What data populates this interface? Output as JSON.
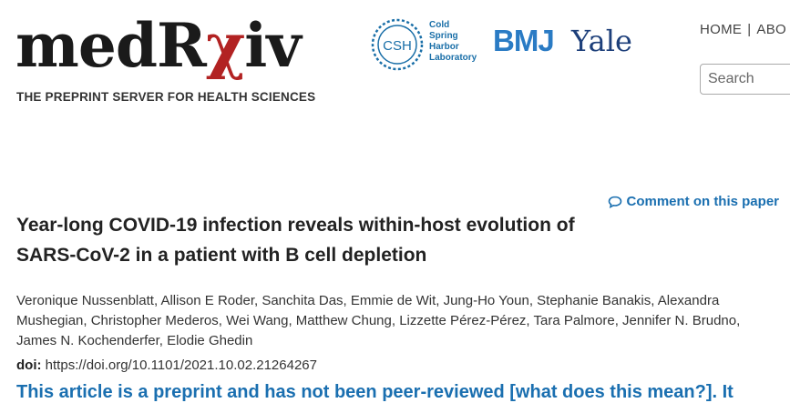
{
  "header": {
    "logo": {
      "prefix": "medR",
      "chi": "χ",
      "suffix": "iv"
    },
    "tagline": "THE PREPRINT SERVER FOR HEALTH SCIENCES",
    "partners": {
      "csh": {
        "emblem": "CSH",
        "lines": [
          "Cold",
          "Spring",
          "Harbor",
          "Laboratory"
        ]
      },
      "bmj": "BMJ",
      "yale": "Yale"
    },
    "nav": {
      "home": "HOME",
      "separator": "|",
      "about": "ABO"
    },
    "search": {
      "placeholder": "Search",
      "value": ""
    }
  },
  "article": {
    "comment_link": "Comment on this paper",
    "title_line1": "Year-long COVID-19 infection reveals within-host evolution of",
    "title_line2": "SARS-CoV-2 in a patient with B cell depletion",
    "authors": "Veronique Nussenblatt, Allison E Roder, Sanchita Das, Emmie de Wit, Jung-Ho Youn, Stephanie Banakis, Alexandra Mushegian, Christopher Mederos, Wei Wang, Matthew Chung, Lizzette Pérez-Pérez, Tara Palmore, Jennifer N. Brudno, James N. Kochenderfer, Elodie Ghedin",
    "doi_label": "doi:",
    "doi_value": "https://doi.org/10.1101/2021.10.02.21264267",
    "notice": "This article is a preprint and has not been peer-reviewed [what does this mean?]. It"
  },
  "colors": {
    "brand_red": "#b22222",
    "link_blue": "#1a6fb0",
    "bmj_blue": "#2a7bc4",
    "yale_blue": "#1d3f7a"
  },
  "icons": {
    "comment": "comment-icon"
  }
}
